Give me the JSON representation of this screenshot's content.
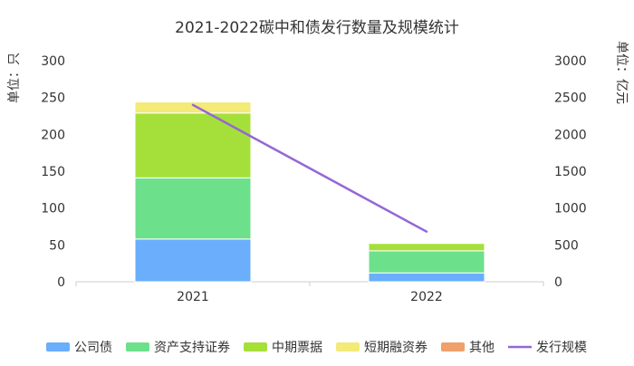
{
  "chart_data": {
    "type": "bar",
    "title": "2021-2022碳中和债发行数量及规模统计",
    "y_left_label": "单位：只",
    "y_right_label": "单位：亿元",
    "categories": [
      "2021",
      "2022"
    ],
    "y_left": {
      "min": 0,
      "max": 300,
      "ticks": [
        "0",
        "50",
        "100",
        "150",
        "200",
        "250",
        "300"
      ]
    },
    "y_right": {
      "min": 0,
      "max": 3000,
      "ticks": [
        "0",
        "500",
        "1000",
        "1500",
        "2000",
        "2500",
        "3000"
      ]
    },
    "stacked": true,
    "series": [
      {
        "name": "公司债",
        "type": "bar",
        "color": "#6aaefc",
        "values": [
          58,
          12
        ]
      },
      {
        "name": "资产支持证券",
        "type": "bar",
        "color": "#6de08c",
        "values": [
          83,
          30
        ]
      },
      {
        "name": "中期票据",
        "type": "bar",
        "color": "#a5e03a",
        "values": [
          88,
          10
        ]
      },
      {
        "name": "短期融资券",
        "type": "bar",
        "color": "#f3ea78",
        "values": [
          15,
          0
        ]
      },
      {
        "name": "其他",
        "type": "bar",
        "color": "#f0a06a",
        "values": [
          0,
          0
        ]
      },
      {
        "name": "发行规模",
        "type": "line",
        "axis": "right",
        "color": "#9467d6",
        "values": [
          2400,
          680
        ]
      }
    ],
    "legend_position": "bottom",
    "grid": false
  }
}
